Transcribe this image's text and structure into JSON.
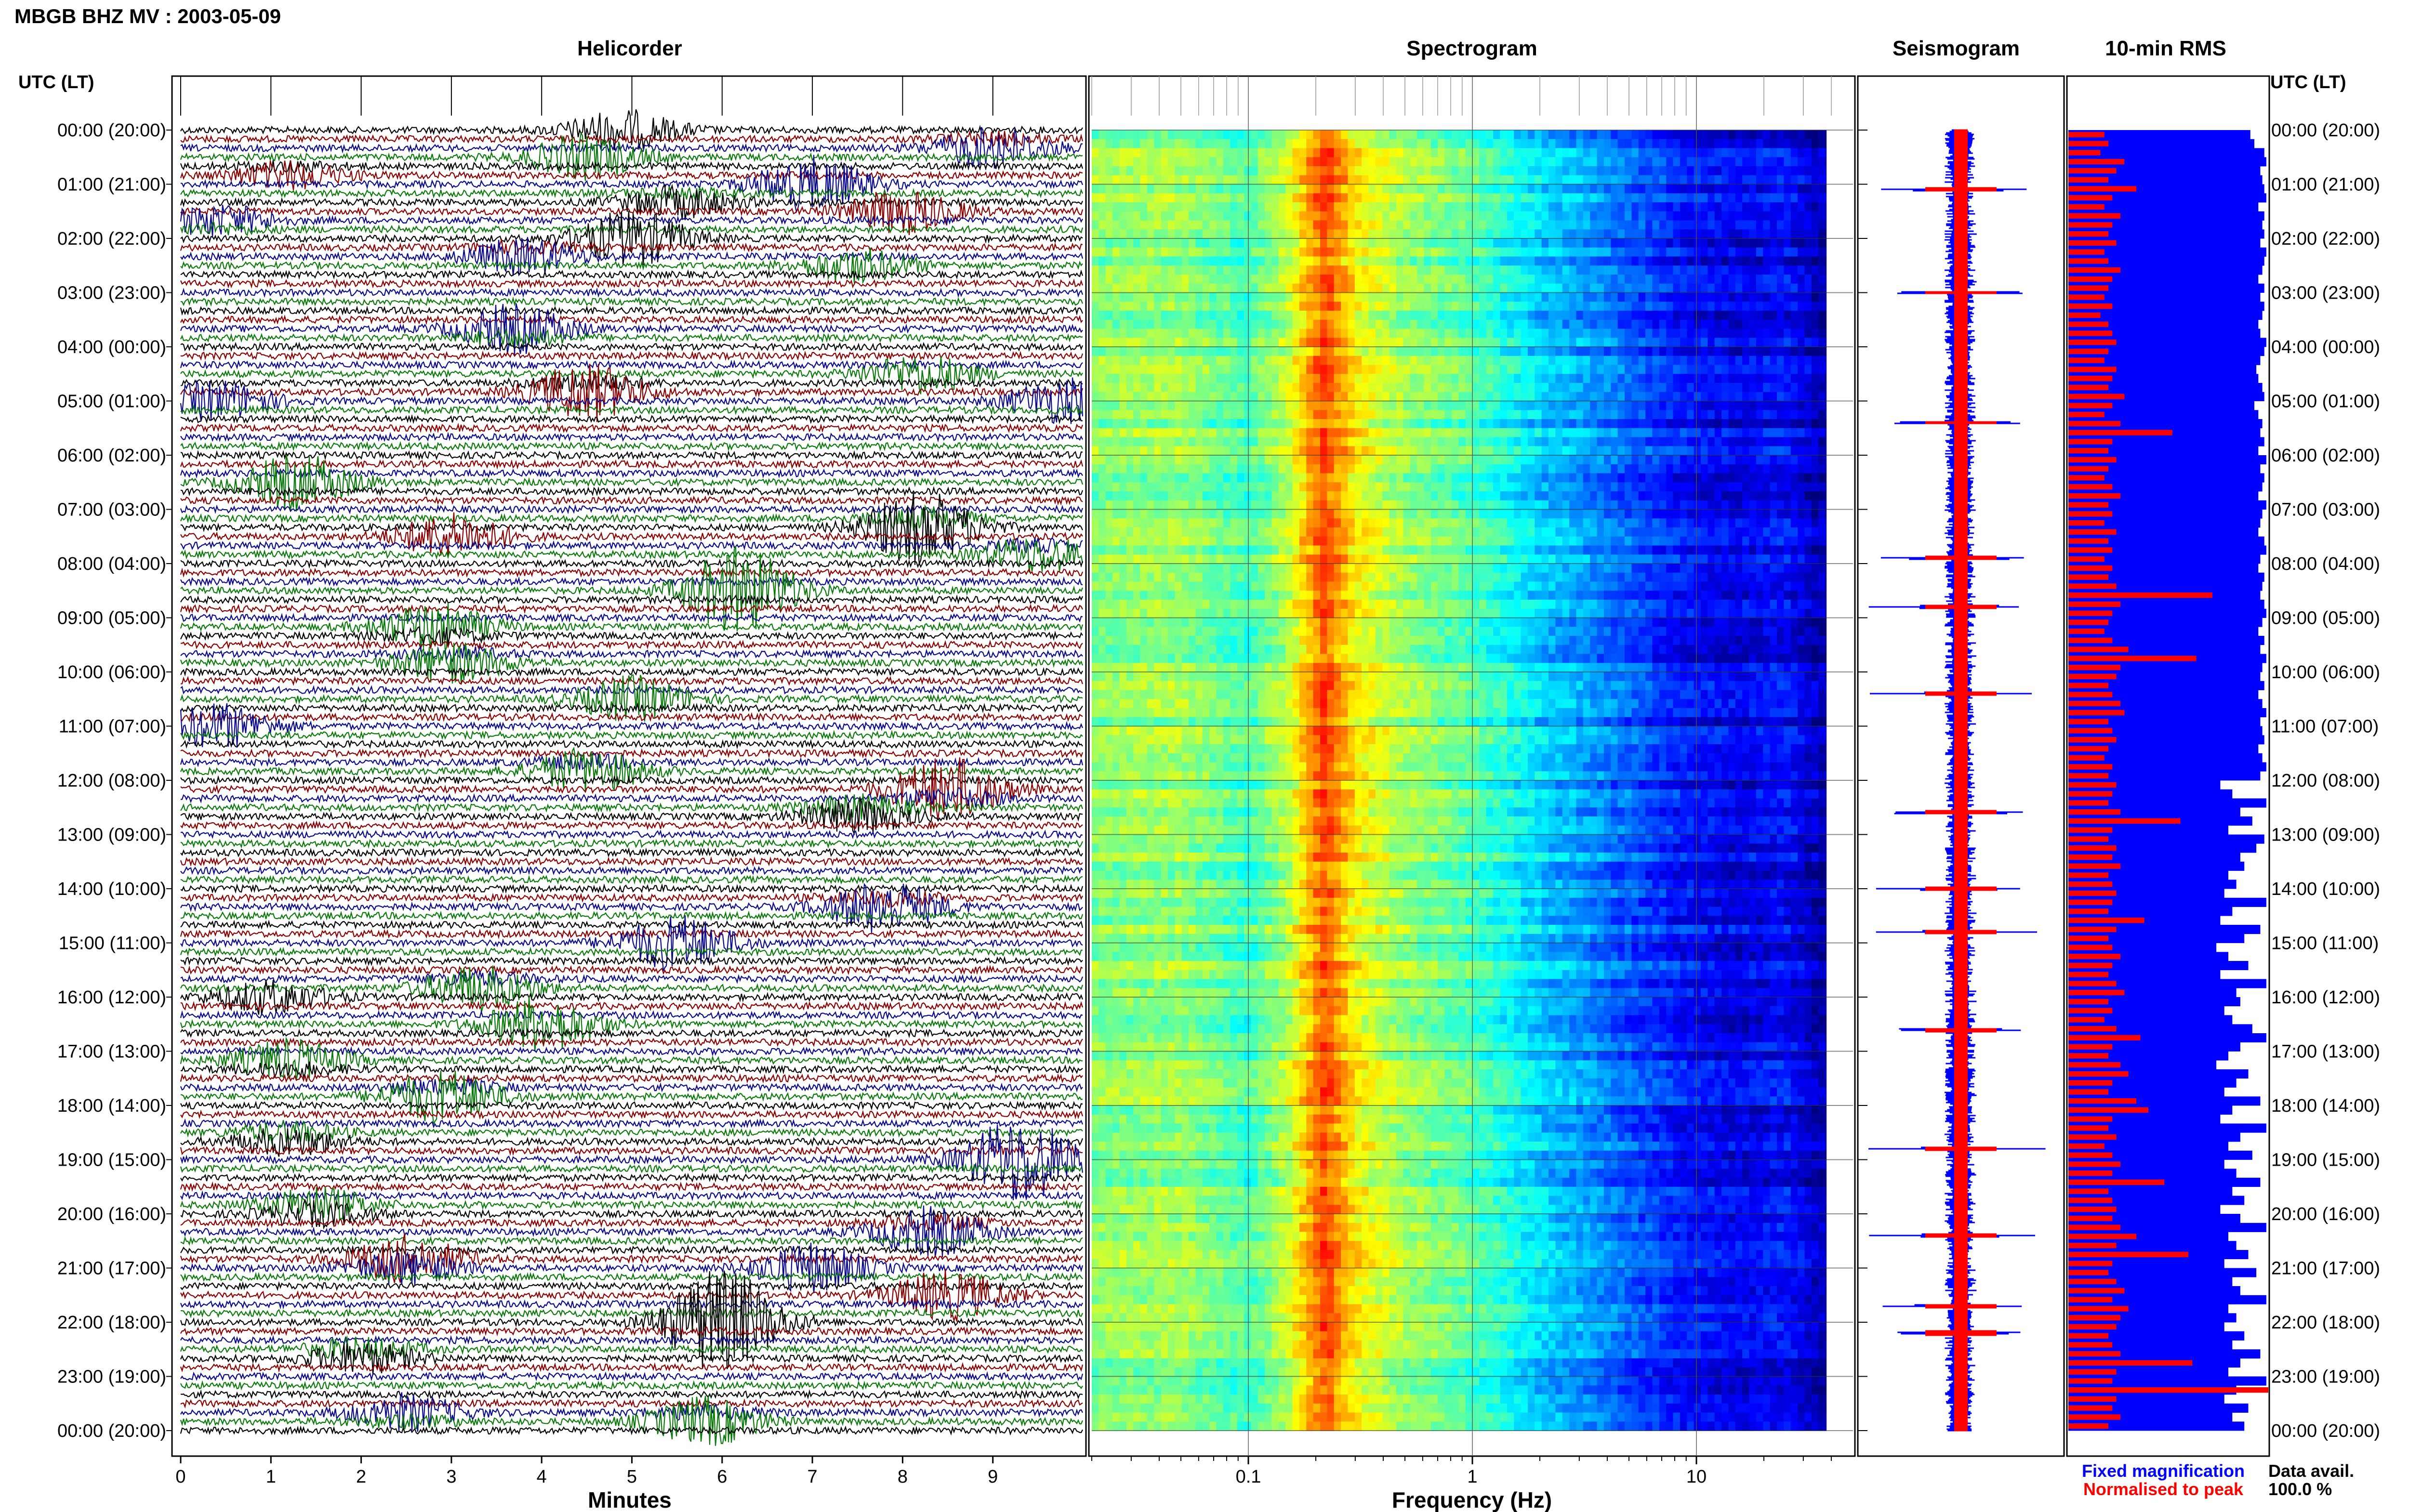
{
  "header": {
    "title": "MBGB BHZ MV : 2003-05-09",
    "utc_label_left": "UTC (LT)",
    "utc_label_right": "UTC (LT)"
  },
  "panels": {
    "helicorder": "Helicorder",
    "spectrogram": "Spectrogram",
    "seismogram": "Seismogram",
    "rms": "10-min RMS"
  },
  "colors": {
    "black": "#000000",
    "dark_red": "#8b0000",
    "dark_blue": "#0a0a8c",
    "green": "#0a7a0a",
    "blue": "#0000ff",
    "red": "#ff0000"
  },
  "time_labels": [
    "00:00 (20:00)",
    "01:00 (21:00)",
    "02:00 (22:00)",
    "03:00 (23:00)",
    "04:00 (00:00)",
    "05:00 (01:00)",
    "06:00 (02:00)",
    "07:00 (03:00)",
    "08:00 (04:00)",
    "09:00 (05:00)",
    "10:00 (06:00)",
    "11:00 (07:00)",
    "12:00 (08:00)",
    "13:00 (09:00)",
    "14:00 (10:00)",
    "15:00 (11:00)",
    "16:00 (12:00)",
    "17:00 (13:00)",
    "18:00 (14:00)",
    "19:00 (15:00)",
    "20:00 (16:00)",
    "21:00 (17:00)",
    "22:00 (18:00)",
    "23:00 (19:00)",
    "00:00 (20:00)"
  ],
  "legend": {
    "fixed": "Fixed magnification",
    "normalised": "Normalised to peak",
    "data_avail_label": "Data avail.",
    "data_avail_value": "100.0 %"
  },
  "chart_data": [
    {
      "type": "line",
      "title": "Helicorder",
      "xlabel": "Minutes",
      "x_ticks": [
        "0",
        "1",
        "2",
        "3",
        "4",
        "5",
        "6",
        "7",
        "8",
        "9"
      ],
      "xlim": [
        0,
        10
      ],
      "rows_per_hour": 6,
      "hours": 24,
      "trace_colors": [
        "black",
        "dark_red",
        "dark_blue",
        "green"
      ],
      "events": [
        {
          "hour": 0.0,
          "minute": 4.9,
          "amp": 0.7
        },
        {
          "hour": 0.3,
          "minute": 9.0,
          "amp": 0.9
        },
        {
          "hour": 0.5,
          "minute": 4.5,
          "amp": 0.8
        },
        {
          "hour": 0.8,
          "minute": 1.2,
          "amp": 0.6
        },
        {
          "hour": 1.0,
          "minute": 7.0,
          "amp": 1.0
        },
        {
          "hour": 1.3,
          "minute": 5.5,
          "amp": 0.7
        },
        {
          "hour": 1.5,
          "minute": 8.0,
          "amp": 0.8
        },
        {
          "hour": 1.7,
          "minute": 0.4,
          "amp": 0.7
        },
        {
          "hour": 2.0,
          "minute": 5.0,
          "amp": 1.0
        },
        {
          "hour": 2.3,
          "minute": 3.8,
          "amp": 0.8
        },
        {
          "hour": 2.5,
          "minute": 7.5,
          "amp": 0.6
        },
        {
          "hour": 3.7,
          "minute": 3.7,
          "amp": 1.1
        },
        {
          "hour": 4.5,
          "minute": 8.2,
          "amp": 0.7
        },
        {
          "hour": 4.8,
          "minute": 4.5,
          "amp": 1.3
        },
        {
          "hour": 5.0,
          "minute": 9.8,
          "amp": 0.8
        },
        {
          "hour": 5.0,
          "minute": 0.4,
          "amp": 0.7
        },
        {
          "hour": 6.5,
          "minute": 1.3,
          "amp": 1.0
        },
        {
          "hour": 7.3,
          "minute": 8.2,
          "amp": 1.7
        },
        {
          "hour": 7.5,
          "minute": 3.0,
          "amp": 0.8
        },
        {
          "hour": 7.8,
          "minute": 9.5,
          "amp": 0.8
        },
        {
          "hour": 8.5,
          "minute": 6.2,
          "amp": 1.6
        },
        {
          "hour": 9.2,
          "minute": 2.8,
          "amp": 1.1
        },
        {
          "hour": 9.8,
          "minute": 3.0,
          "amp": 0.9
        },
        {
          "hour": 10.5,
          "minute": 5.0,
          "amp": 0.8
        },
        {
          "hour": 11.0,
          "minute": 0.4,
          "amp": 0.8
        },
        {
          "hour": 11.8,
          "minute": 4.5,
          "amp": 1.0
        },
        {
          "hour": 12.2,
          "minute": 8.5,
          "amp": 1.5
        },
        {
          "hour": 12.6,
          "minute": 7.5,
          "amp": 1.0
        },
        {
          "hour": 14.3,
          "minute": 7.8,
          "amp": 1.2
        },
        {
          "hour": 15.0,
          "minute": 5.5,
          "amp": 1.0
        },
        {
          "hour": 15.8,
          "minute": 3.3,
          "amp": 1.0
        },
        {
          "hour": 16.0,
          "minute": 1.0,
          "amp": 0.6
        },
        {
          "hour": 16.5,
          "minute": 4.0,
          "amp": 1.0
        },
        {
          "hour": 17.2,
          "minute": 1.2,
          "amp": 0.9
        },
        {
          "hour": 17.8,
          "minute": 2.9,
          "amp": 1.2
        },
        {
          "hour": 18.6,
          "minute": 1.2,
          "amp": 0.8
        },
        {
          "hour": 19.0,
          "minute": 9.3,
          "amp": 1.6
        },
        {
          "hour": 19.9,
          "minute": 1.5,
          "amp": 1.0
        },
        {
          "hour": 20.3,
          "minute": 8.3,
          "amp": 1.1
        },
        {
          "hour": 20.9,
          "minute": 2.5,
          "amp": 1.4
        },
        {
          "hour": 21.0,
          "minute": 7.0,
          "amp": 0.9
        },
        {
          "hour": 21.5,
          "minute": 8.5,
          "amp": 0.9
        },
        {
          "hour": 22.0,
          "minute": 6.0,
          "amp": 2.0
        },
        {
          "hour": 22.6,
          "minute": 2.0,
          "amp": 0.9
        },
        {
          "hour": 23.7,
          "minute": 2.5,
          "amp": 0.8
        },
        {
          "hour": 23.8,
          "minute": 5.8,
          "amp": 1.1
        }
      ]
    },
    {
      "type": "heatmap",
      "title": "Spectrogram",
      "xlabel": "Frequency (Hz)",
      "x_scale": "log",
      "xlim": [
        0.02,
        50
      ],
      "x_ticks": [
        "0.1",
        "1",
        "10"
      ],
      "y_range_hours": [
        0,
        24
      ],
      "profile": [
        {
          "f": 0.02,
          "level": 0.58
        },
        {
          "f": 0.05,
          "level": 0.6
        },
        {
          "f": 0.1,
          "level": 0.5
        },
        {
          "f": 0.15,
          "level": 0.64
        },
        {
          "f": 0.22,
          "level": 0.92
        },
        {
          "f": 0.3,
          "level": 0.72
        },
        {
          "f": 0.5,
          "level": 0.6
        },
        {
          "f": 1.0,
          "level": 0.52
        },
        {
          "f": 2.0,
          "level": 0.38
        },
        {
          "f": 4.0,
          "level": 0.28
        },
        {
          "f": 8.0,
          "level": 0.17
        },
        {
          "f": 15.0,
          "level": 0.12
        },
        {
          "f": 25.0,
          "level": 0.15
        },
        {
          "f": 35.0,
          "level": 0.06
        },
        {
          "f": 45.0,
          "level": 0.04
        }
      ],
      "colormap": [
        "#00007f",
        "#0000ff",
        "#0080ff",
        "#00ffff",
        "#80ff80",
        "#ffff00",
        "#ff8000",
        "#ff0000"
      ]
    },
    {
      "type": "line",
      "title": "Seismogram",
      "series": [
        {
          "name": "Fixed magnification",
          "color": "blue"
        },
        {
          "name": "Normalised to peak",
          "color": "red"
        }
      ],
      "spikes_hours": [
        1.1,
        3.0,
        5.4,
        7.9,
        8.8,
        10.4,
        12.6,
        14.0,
        14.8,
        16.6,
        18.8,
        20.4,
        21.7,
        22.2
      ]
    },
    {
      "type": "bar",
      "title": "10-min RMS",
      "orientation": "horizontal",
      "bins": 144,
      "bins_per_hour": 6,
      "series": [
        {
          "name": "Fixed magnification",
          "color": "blue",
          "values": [
            0.91,
            0.93,
            0.98,
            0.99,
            0.96,
            0.97,
            0.98,
            0.99,
            0.95,
            0.98,
            0.97,
            0.98,
            0.96,
            0.99,
            0.98,
            0.97,
            0.95,
            0.98,
            0.96,
            0.98,
            0.97,
            0.95,
            0.96,
            0.99,
            0.98,
            0.96,
            0.94,
            0.95,
            0.97,
            0.98,
            0.93,
            0.95,
            0.97,
            0.96,
            0.98,
            0.95,
            0.99,
            0.96,
            0.98,
            0.97,
            0.95,
            0.99,
            0.97,
            0.96,
            0.95,
            0.98,
            0.99,
            0.96,
            0.95,
            0.98,
            0.97,
            0.96,
            0.98,
            0.99,
            0.97,
            0.95,
            0.98,
            0.96,
            0.99,
            0.97,
            0.96,
            0.98,
            0.95,
            0.97,
            0.99,
            0.96,
            0.97,
            0.98,
            0.95,
            0.97,
            0.99,
            0.96,
            0.76,
            0.82,
            0.99,
            0.86,
            0.92,
            0.8,
            0.98,
            0.94,
            0.86,
            0.88,
            0.8,
            0.84,
            0.78,
            0.99,
            0.82,
            0.76,
            0.96,
            0.88,
            0.74,
            0.8,
            0.9,
            0.76,
            0.99,
            0.84,
            0.86,
            0.78,
            0.82,
            0.92,
            0.99,
            0.86,
            0.8,
            0.74,
            0.9,
            0.84,
            0.78,
            0.96,
            0.82,
            0.76,
            0.99,
            0.86,
            0.8,
            0.92,
            0.78,
            0.84,
            0.96,
            0.82,
            0.88,
            0.76,
            0.86,
            0.99,
            0.8,
            0.84,
            0.9,
            0.78,
            0.94,
            0.82,
            0.86,
            0.99,
            0.8,
            0.84,
            0.78,
            0.88,
            0.82,
            0.96,
            0.86,
            0.8,
            0.99,
            0.84,
            0.78,
            0.9,
            0.82,
            0.88
          ]
        },
        {
          "name": "Normalised to peak",
          "color": "red",
          "values": [
            0.18,
            0.2,
            0.16,
            0.28,
            0.24,
            0.2,
            0.34,
            0.22,
            0.18,
            0.26,
            0.22,
            0.2,
            0.24,
            0.18,
            0.2,
            0.26,
            0.22,
            0.2,
            0.18,
            0.22,
            0.16,
            0.2,
            0.22,
            0.24,
            0.2,
            0.18,
            0.24,
            0.22,
            0.2,
            0.28,
            0.22,
            0.18,
            0.26,
            0.52,
            0.22,
            0.2,
            0.24,
            0.2,
            0.18,
            0.22,
            0.26,
            0.2,
            0.22,
            0.18,
            0.24,
            0.2,
            0.22,
            0.18,
            0.22,
            0.2,
            0.24,
            0.72,
            0.26,
            0.22,
            0.2,
            0.18,
            0.22,
            0.3,
            0.64,
            0.26,
            0.24,
            0.2,
            0.22,
            0.26,
            0.28,
            0.2,
            0.22,
            0.24,
            0.2,
            0.18,
            0.22,
            0.2,
            0.24,
            0.22,
            0.2,
            0.26,
            0.56,
            0.22,
            0.2,
            0.24,
            0.22,
            0.26,
            0.2,
            0.22,
            0.24,
            0.22,
            0.2,
            0.38,
            0.24,
            0.2,
            0.22,
            0.26,
            0.22,
            0.2,
            0.24,
            0.28,
            0.2,
            0.22,
            0.18,
            0.24,
            0.36,
            0.22,
            0.2,
            0.26,
            0.3,
            0.22,
            0.2,
            0.34,
            0.4,
            0.22,
            0.2,
            0.24,
            0.18,
            0.22,
            0.26,
            0.22,
            0.48,
            0.2,
            0.22,
            0.24,
            0.22,
            0.26,
            0.34,
            0.24,
            0.6,
            0.22,
            0.2,
            0.24,
            0.28,
            0.22,
            0.3,
            0.26,
            0.24,
            0.2,
            0.22,
            0.26,
            0.62,
            0.24,
            0.22,
            1.0,
            0.24,
            0.22,
            0.26,
            0.2
          ]
        }
      ]
    }
  ]
}
